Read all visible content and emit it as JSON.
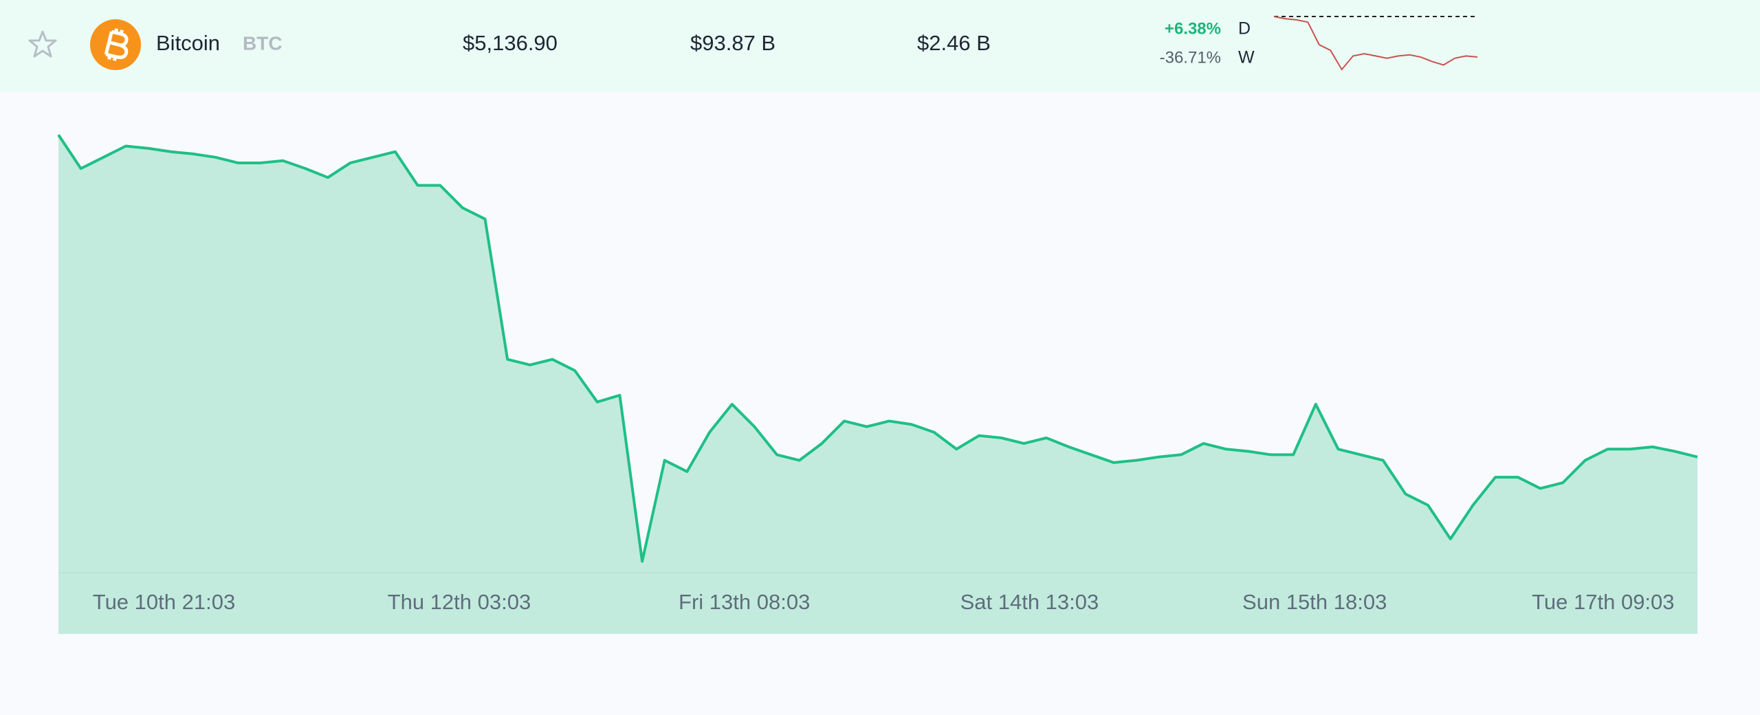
{
  "row": {
    "name": "Bitcoin",
    "symbol": "BTC",
    "price": "$5,136.90",
    "market_cap": "$93.87 B",
    "volume": "$2.46 B",
    "change_day": "+6.38%",
    "day_label": "D",
    "change_week": "-36.71%",
    "week_label": "W",
    "sparkline": {
      "type": "line",
      "color": "#c9524f",
      "baseline": 8000,
      "ylim": [
        4000,
        8000
      ],
      "values": [
        8000,
        7840,
        7760,
        7600,
        6000,
        5600,
        4240,
        5200,
        5360,
        5200,
        5040,
        5200,
        5280,
        5120,
        4800,
        4560,
        5040,
        5200,
        5120
      ]
    }
  },
  "chart_data": {
    "type": "area",
    "color": "#1fbf86",
    "fill": "#c2ebdd",
    "xlim": [
      0,
      73
    ],
    "ylim": [
      4000,
      8000
    ],
    "xticks": [
      {
        "value": 4.7,
        "label": "Tue 10th 21:03"
      },
      {
        "value": 17.85,
        "label": "Thu 12th 03:03"
      },
      {
        "value": 30.55,
        "label": "Fri 13th 08:03"
      },
      {
        "value": 43.25,
        "label": "Sat 14th 13:03"
      },
      {
        "value": 55.95,
        "label": "Sun 15th 18:03"
      },
      {
        "value": 68.8,
        "label": "Tue 17th 09:03"
      }
    ],
    "values": [
      7950,
      7650,
      7750,
      7850,
      7830,
      7800,
      7780,
      7750,
      7700,
      7700,
      7720,
      7650,
      7570,
      7700,
      7750,
      7800,
      7500,
      7500,
      7300,
      7200,
      5950,
      5900,
      5950,
      5850,
      5570,
      5630,
      4150,
      5050,
      4950,
      5300,
      5550,
      5350,
      5100,
      5050,
      5200,
      5400,
      5350,
      5400,
      5370,
      5300,
      5150,
      5270,
      5250,
      5200,
      5250,
      5170,
      5100,
      5030,
      5050,
      5080,
      5100,
      5200,
      5150,
      5130,
      5100,
      5100,
      5550,
      5150,
      5100,
      5050,
      4750,
      4650,
      4350,
      4650,
      4900,
      4900,
      4800,
      4850,
      5050,
      5150,
      5150,
      5170,
      5130,
      5080
    ]
  }
}
